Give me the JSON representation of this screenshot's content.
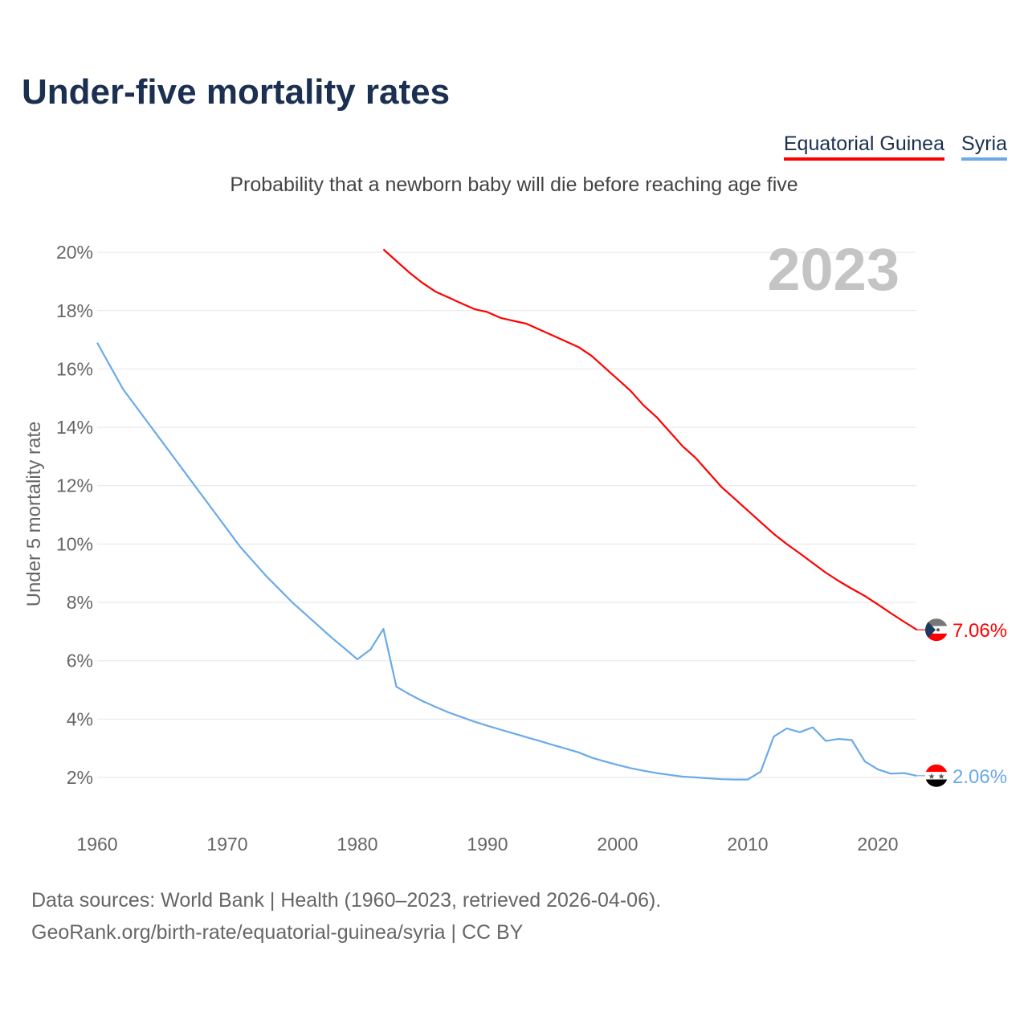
{
  "title": "Under-five mortality rates",
  "subtitle": "Probability that a newborn baby will die before reaching age five",
  "year_badge": "2023",
  "legend": [
    {
      "name": "Equatorial Guinea",
      "color": "#ff0000"
    },
    {
      "name": "Syria",
      "color": "#6aaae8"
    }
  ],
  "footer": {
    "line1": "Data sources: World Bank | Health (1960–2023, retrieved 2026-04-06).",
    "line2": "GeoRank.org/birth-rate/equatorial-guinea/syria | CC BY"
  },
  "chart_data": {
    "type": "line",
    "title": "Under-five mortality rates",
    "xlabel": "",
    "ylabel": "Under 5 mortality rate",
    "xlim": [
      1960,
      2023
    ],
    "ylim": [
      0,
      20
    ],
    "xticks": [
      1960,
      1970,
      1980,
      1990,
      2000,
      2010,
      2020
    ],
    "yticks": [
      2,
      4,
      6,
      8,
      10,
      12,
      14,
      16,
      18,
      20
    ],
    "ytick_labels": [
      "2%",
      "4%",
      "6%",
      "8%",
      "10%",
      "12%",
      "14%",
      "16%",
      "18%",
      "20%"
    ],
    "grid": true,
    "legend_position": "top-right",
    "series": [
      {
        "name": "Equatorial Guinea",
        "color": "#ff0000",
        "start_year": 1982,
        "end_label": "7.06%",
        "values": [
          20.1,
          19.7,
          19.3,
          18.95,
          18.65,
          18.45,
          18.25,
          18.05,
          17.95,
          17.75,
          17.65,
          17.55,
          17.35,
          17.15,
          16.95,
          16.75,
          16.45,
          16.05,
          15.65,
          15.25,
          14.75,
          14.35,
          13.85,
          13.35,
          12.95,
          12.45,
          11.95,
          11.55,
          11.15,
          10.75,
          10.35,
          10.0,
          9.68,
          9.35,
          9.02,
          8.73,
          8.47,
          8.22,
          7.93,
          7.63,
          7.34,
          7.06
        ]
      },
      {
        "name": "Syria",
        "color": "#6aaae8",
        "start_year": 1960,
        "end_label": "2.06%",
        "values": [
          16.9,
          16.1,
          15.3,
          14.7,
          14.1,
          13.5,
          12.9,
          12.3,
          11.7,
          11.1,
          10.5,
          9.9,
          9.4,
          8.9,
          8.45,
          8.0,
          7.6,
          7.2,
          6.8,
          6.43,
          6.05,
          6.38,
          7.09,
          5.11,
          4.85,
          4.62,
          4.42,
          4.23,
          4.07,
          3.91,
          3.77,
          3.64,
          3.51,
          3.38,
          3.25,
          3.12,
          2.99,
          2.86,
          2.68,
          2.55,
          2.43,
          2.32,
          2.23,
          2.15,
          2.09,
          2.03,
          2.0,
          1.97,
          1.94,
          1.93,
          1.93,
          2.2,
          3.4,
          3.68,
          3.55,
          3.72,
          3.25,
          3.32,
          3.28,
          2.55,
          2.28,
          2.13,
          2.15,
          2.06
        ]
      }
    ]
  }
}
